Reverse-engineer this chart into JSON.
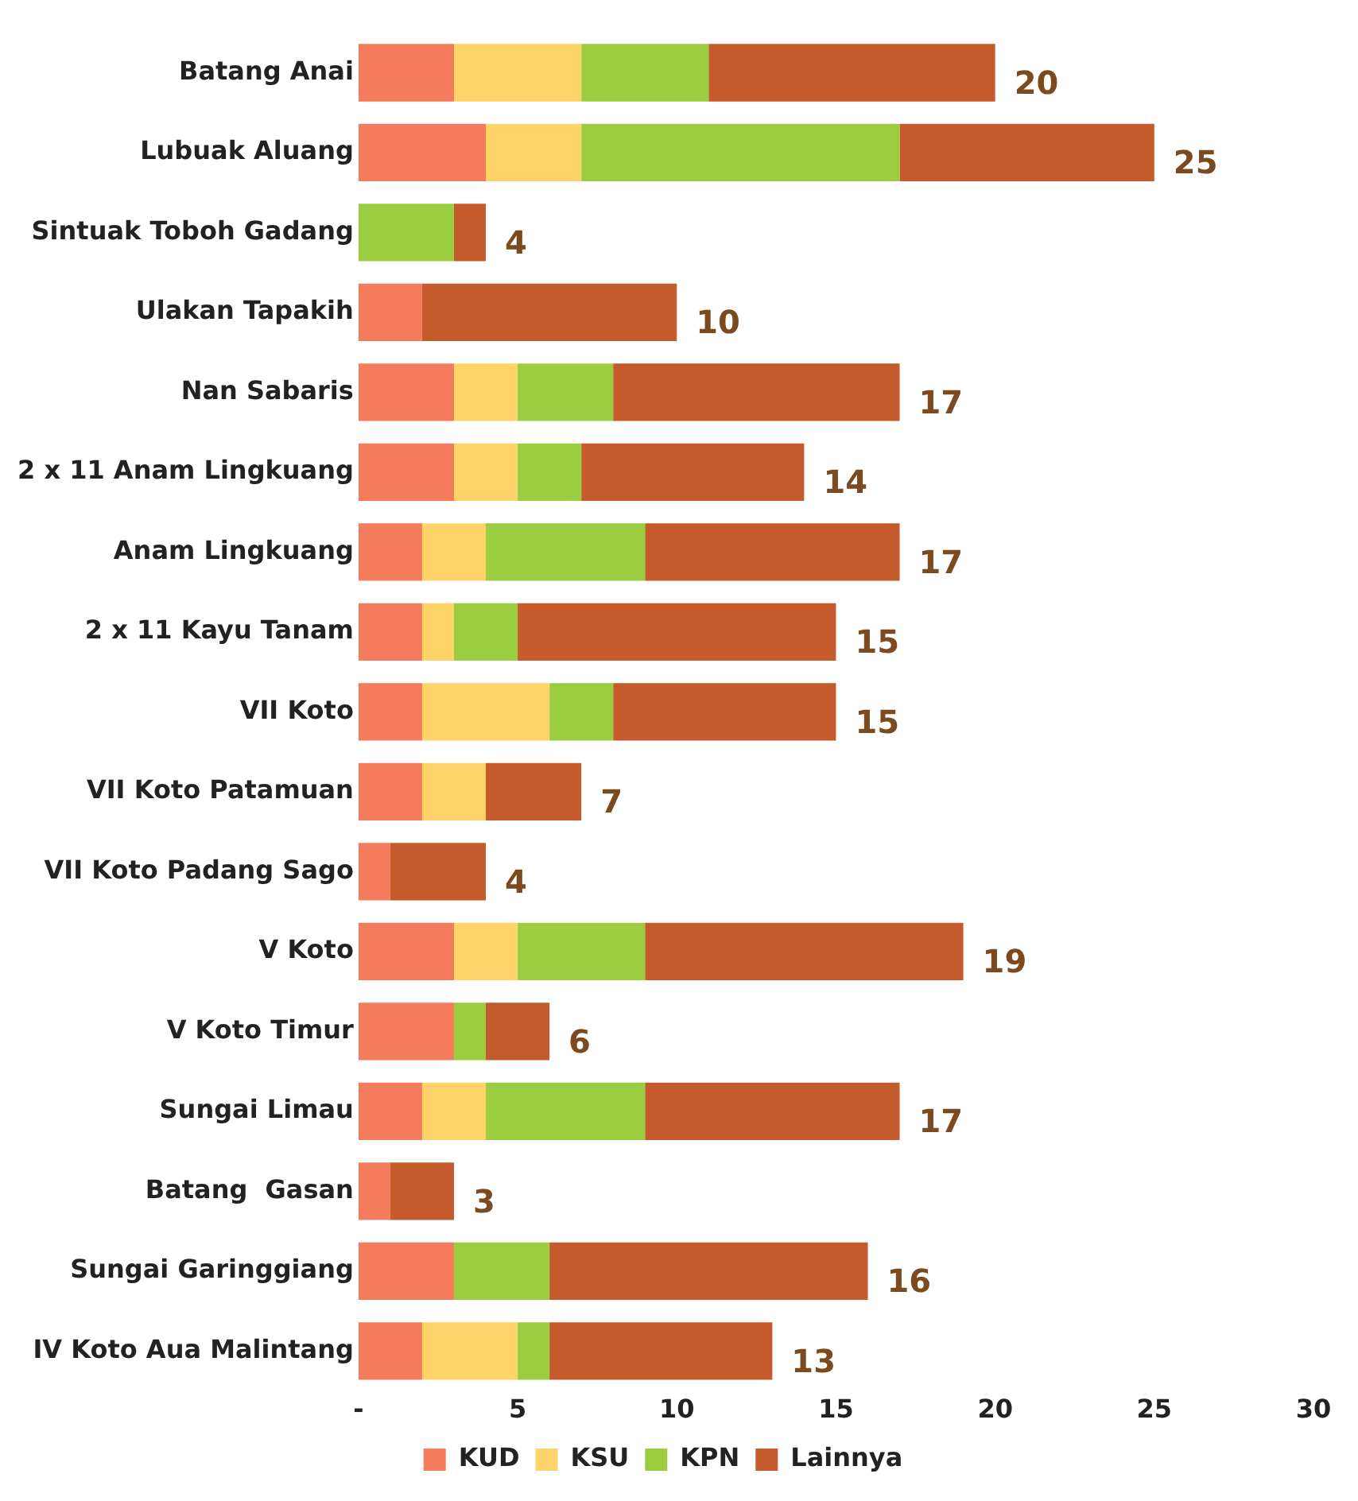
{
  "chart_data": {
    "type": "bar",
    "orientation": "horizontal",
    "stacked": true,
    "categories": [
      "Batang Anai",
      "Lubuak Aluang",
      "Sintuak Toboh Gadang",
      "Ulakan Tapakih",
      "Nan Sabaris",
      "2 x 11 Anam Lingkuang",
      "Anam Lingkuang",
      "2 x 11 Kayu Tanam",
      "VII Koto",
      "VII Koto Patamuan",
      "VII Koto Padang Sago",
      "V Koto",
      "V Koto Timur",
      "Sungai Limau",
      "Batang  Gasan",
      "Sungai Garinggiang",
      "IV Koto Aua Malintang"
    ],
    "series": [
      {
        "name": "KUD",
        "color": "#f47c5c",
        "values": [
          3,
          4,
          0,
          2,
          3,
          3,
          2,
          2,
          2,
          2,
          1,
          3,
          3,
          2,
          1,
          3,
          2
        ]
      },
      {
        "name": "KSU",
        "color": "#fdd36a",
        "values": [
          4,
          3,
          0,
          0,
          2,
          2,
          2,
          1,
          4,
          2,
          0,
          2,
          0,
          2,
          0,
          0,
          3
        ]
      },
      {
        "name": "KPN",
        "color": "#9acd3f",
        "values": [
          4,
          10,
          3,
          0,
          3,
          2,
          5,
          2,
          2,
          0,
          0,
          4,
          1,
          5,
          0,
          3,
          1
        ]
      },
      {
        "name": "Lainnya",
        "color": "#c55a2b",
        "values": [
          9,
          8,
          1,
          8,
          9,
          7,
          8,
          10,
          7,
          3,
          3,
          10,
          2,
          8,
          2,
          10,
          7
        ]
      }
    ],
    "totals": [
      "20",
      "25",
      "4",
      "10",
      "17",
      "14",
      "17",
      "15",
      "15",
      "7",
      "4",
      "19",
      "6",
      "17",
      "3",
      "16",
      "13"
    ],
    "xlim": [
      0,
      30
    ],
    "xticks": [
      {
        "value": 0,
        "label": "-"
      },
      5,
      10,
      15,
      20,
      25,
      30
    ],
    "grid": false,
    "legend": "bottom"
  }
}
